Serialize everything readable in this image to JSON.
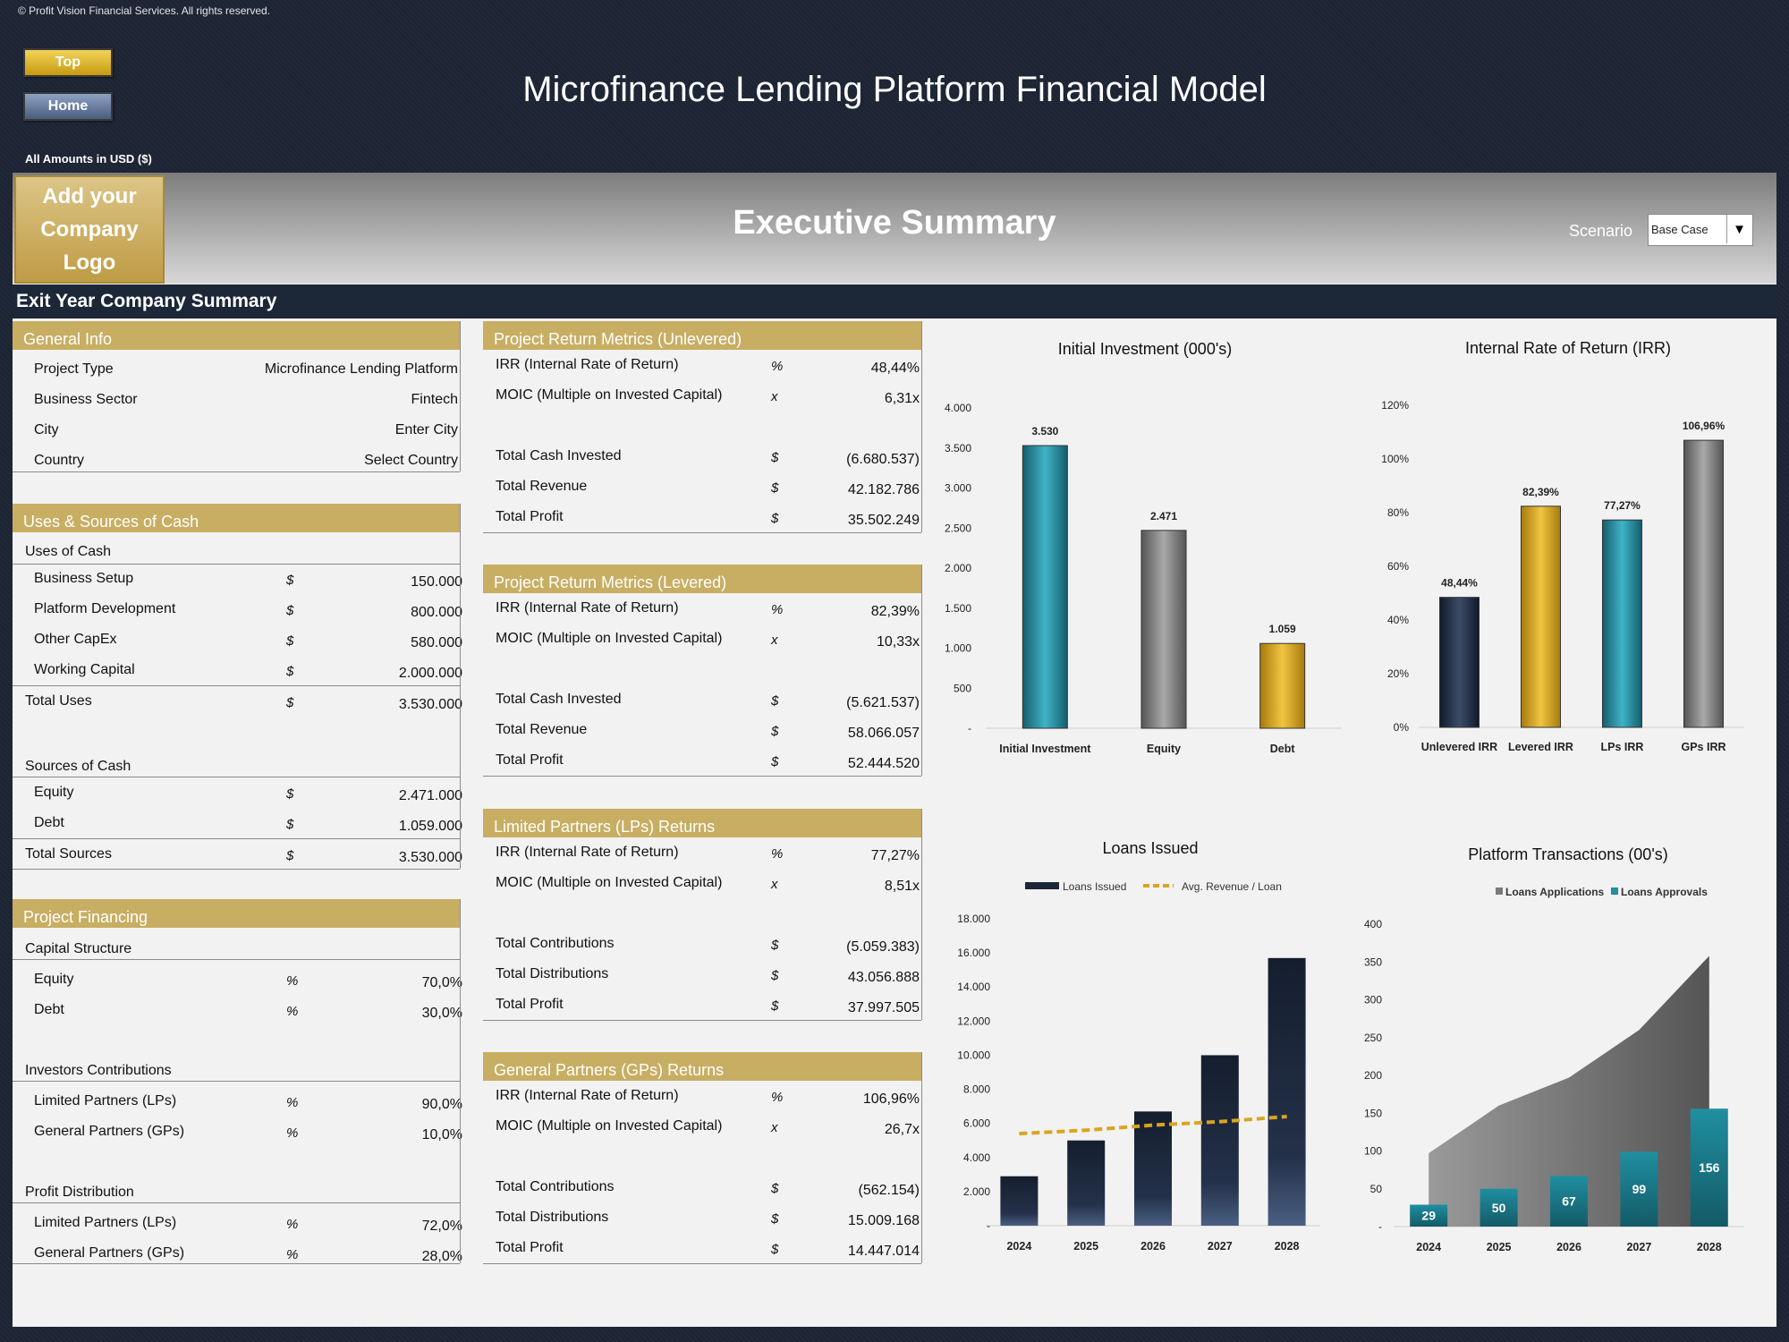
{
  "header": {
    "copyright": "© Profit Vision Financial Services. All rights reserved.",
    "top_button": "Top",
    "home_button": "Home",
    "title": "Microfinance Lending Platform Financial Model",
    "amounts": "All Amounts in  USD ($)"
  },
  "banner": {
    "logo_line1": "Add your",
    "logo_line2": "Company Logo",
    "title": "Executive Summary",
    "scenario_label": "Scenario",
    "scenario_value": "Base Case"
  },
  "section_title": "Exit Year Company Summary",
  "general_info": {
    "header": "General Info",
    "rows": [
      {
        "label": "Project Type",
        "value": "Microfinance Lending Platform"
      },
      {
        "label": "Business Sector",
        "value": "Fintech"
      },
      {
        "label": "City",
        "value": "Enter City"
      },
      {
        "label": "Country",
        "value": "Select Country"
      }
    ]
  },
  "uses_sources": {
    "header": "Uses & Sources of Cash",
    "uses_title": "Uses of Cash",
    "uses": [
      {
        "label": "Business Setup",
        "unit": "$",
        "value": "150.000"
      },
      {
        "label": "Platform Development",
        "unit": "$",
        "value": "800.000"
      },
      {
        "label": "Other CapEx",
        "unit": "$",
        "value": "580.000"
      },
      {
        "label": "Working Capital",
        "unit": "$",
        "value": "2.000.000"
      }
    ],
    "total_uses": {
      "label": "Total Uses",
      "unit": "$",
      "value": "3.530.000"
    },
    "sources_title": "Sources of Cash",
    "sources": [
      {
        "label": "Equity",
        "unit": "$",
        "value": "2.471.000"
      },
      {
        "label": "Debt",
        "unit": "$",
        "value": "1.059.000"
      }
    ],
    "total_sources": {
      "label": "Total Sources",
      "unit": "$",
      "value": "3.530.000"
    }
  },
  "project_financing": {
    "header": "Project Financing",
    "capital_title": "Capital Structure",
    "capital": [
      {
        "label": "Equity",
        "unit": "%",
        "value": "70,0%"
      },
      {
        "label": "Debt",
        "unit": "%",
        "value": "30,0%"
      }
    ],
    "investors_title": "Investors Contributions",
    "investors": [
      {
        "label": "Limited Partners (LPs)",
        "unit": "%",
        "value": "90,0%"
      },
      {
        "label": "General Partners (GPs)",
        "unit": "%",
        "value": "10,0%"
      }
    ],
    "profit_title": "Profit Distribution",
    "profit": [
      {
        "label": "Limited Partners (LPs)",
        "unit": "%",
        "value": "72,0%"
      },
      {
        "label": "General Partners (GPs)",
        "unit": "%",
        "value": "28,0%"
      }
    ]
  },
  "metrics_unlevered": {
    "header": "Project Return Metrics (Unlevered)",
    "irr": {
      "label": "IRR (Internal Rate of Return)",
      "unit": "%",
      "value": "48,44%"
    },
    "moic": {
      "label": "MOIC (Multiple on Invested Capital)",
      "unit": "x",
      "value": "6,31x"
    },
    "rows": [
      {
        "label": "Total Cash Invested",
        "unit": "$",
        "value": "(6.680.537)"
      },
      {
        "label": "Total Revenue",
        "unit": "$",
        "value": "42.182.786"
      },
      {
        "label": "Total Profit",
        "unit": "$",
        "value": "35.502.249"
      }
    ]
  },
  "metrics_levered": {
    "header": "Project Return Metrics (Levered)",
    "irr": {
      "label": "IRR (Internal Rate of Return)",
      "unit": "%",
      "value": "82,39%"
    },
    "moic": {
      "label": "MOIC (Multiple on Invested Capital)",
      "unit": "x",
      "value": "10,33x"
    },
    "rows": [
      {
        "label": "Total Cash Invested",
        "unit": "$",
        "value": "(5.621.537)"
      },
      {
        "label": "Total Revenue",
        "unit": "$",
        "value": "58.066.057"
      },
      {
        "label": "Total Profit",
        "unit": "$",
        "value": "52.444.520"
      }
    ]
  },
  "lp_returns": {
    "header": "Limited Partners (LPs) Returns",
    "irr": {
      "label": "IRR (Internal Rate of Return)",
      "unit": "%",
      "value": "77,27%"
    },
    "moic": {
      "label": "MOIC (Multiple on Invested Capital)",
      "unit": "x",
      "value": "8,51x"
    },
    "rows": [
      {
        "label": "Total Contributions",
        "unit": "$",
        "value": "(5.059.383)"
      },
      {
        "label": "Total Distributions",
        "unit": "$",
        "value": "43.056.888"
      },
      {
        "label": "Total Profit",
        "unit": "$",
        "value": "37.997.505"
      }
    ]
  },
  "gp_returns": {
    "header": "General Partners (GPs) Returns",
    "irr": {
      "label": "IRR (Internal Rate of Return)",
      "unit": "%",
      "value": "106,96%"
    },
    "moic": {
      "label": "MOIC (Multiple on Invested Capital)",
      "unit": "x",
      "value": "26,7x"
    },
    "rows": [
      {
        "label": "Total Contributions",
        "unit": "$",
        "value": "(562.154)"
      },
      {
        "label": "Total Distributions",
        "unit": "$",
        "value": "15.009.168"
      },
      {
        "label": "Total Profit",
        "unit": "$",
        "value": "14.447.014"
      }
    ]
  },
  "colors": {
    "gold": "#c8ae63",
    "navy": "#1c2738",
    "teal": "#1e7e8f",
    "gray": "#7a7a7a",
    "amber": "#d9a520"
  },
  "chart_data": [
    {
      "type": "bar",
      "title": "Initial Investment (000's)",
      "categories": [
        "Initial Investment",
        "Equity",
        "Debt"
      ],
      "values": [
        3530,
        2471,
        1059
      ],
      "labels": [
        "3.530",
        "2.471",
        "1.059"
      ],
      "colors": [
        "teal",
        "gray",
        "amber"
      ],
      "yticks": [
        "4.000",
        "3.500",
        "3.000",
        "2.500",
        "2.000",
        "1.500",
        "1.000",
        "500",
        "-"
      ],
      "ylim": [
        0,
        4000
      ]
    },
    {
      "type": "bar",
      "title": "Internal Rate of Return (IRR)",
      "categories": [
        "Unlevered IRR",
        "Levered IRR",
        "LPs IRR",
        "GPs IRR"
      ],
      "values": [
        48.44,
        82.39,
        77.27,
        106.96
      ],
      "labels": [
        "48,44%",
        "82,39%",
        "77,27%",
        "106,96%"
      ],
      "colors": [
        "navy",
        "amber",
        "teal",
        "gray"
      ],
      "yticks": [
        "120%",
        "100%",
        "80%",
        "60%",
        "40%",
        "20%",
        "0%"
      ],
      "ylim": [
        0,
        120
      ]
    },
    {
      "type": "bar",
      "title": "Loans Issued",
      "legend": [
        "Loans Issued",
        "Avg. Revenue / Loan"
      ],
      "categories": [
        "2024",
        "2025",
        "2026",
        "2027",
        "2028"
      ],
      "series": [
        {
          "name": "Loans Issued",
          "values": [
            2900,
            5000,
            6700,
            10000,
            15700
          ]
        },
        {
          "name": "Avg. Revenue / Loan",
          "values": [
            5400,
            5600,
            5900,
            6100,
            6400
          ]
        }
      ],
      "yticks": [
        "18.000",
        "16.000",
        "14.000",
        "12.000",
        "10.000",
        "8.000",
        "6.000",
        "4.000",
        "2.000",
        "-"
      ],
      "ylim": [
        0,
        18000
      ]
    },
    {
      "type": "area",
      "title": "Platform Transactions (00's)",
      "legend": [
        "Loans Applications",
        "Loans Approvals"
      ],
      "categories": [
        "2024",
        "2025",
        "2026",
        "2027",
        "2028"
      ],
      "series": [
        {
          "name": "Loans Applications",
          "values": [
            97,
            160,
            197,
            260,
            358
          ]
        },
        {
          "name": "Loans Approvals",
          "values": [
            29,
            50,
            67,
            99,
            156
          ]
        }
      ],
      "labels": [
        "29",
        "50",
        "67",
        "99",
        "156"
      ],
      "yticks": [
        "400",
        "350",
        "300",
        "250",
        "200",
        "150",
        "100",
        "50",
        "-"
      ],
      "ylim": [
        0,
        400
      ]
    }
  ]
}
